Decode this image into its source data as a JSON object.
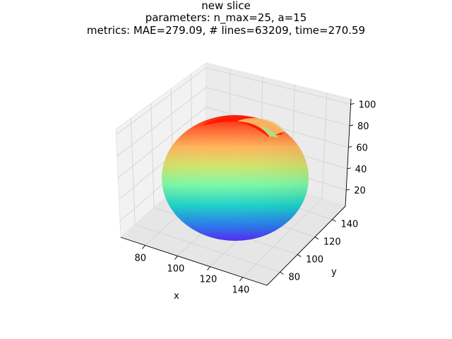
{
  "chart_data": {
    "type": "surface3d",
    "title": "new slice",
    "subtitle_params": "parameters: n_max=25, a=15",
    "subtitle_metrics": "metrics: MAE=279.09, # lines=63209, time=270.59",
    "xlabel": "x",
    "ylabel": "y",
    "zlabel": "",
    "x_ticks": [
      80,
      100,
      120,
      140
    ],
    "y_ticks": [
      80,
      100,
      120,
      140
    ],
    "z_ticks": [
      20,
      40,
      60,
      80,
      100
    ],
    "xlim": [
      65,
      155
    ],
    "ylim": [
      65,
      155
    ],
    "zlim": [
      5,
      105
    ],
    "colormap": "rainbow (blue bottom to red top)",
    "grid": true,
    "surface": {
      "shape": "sphere-like body with concave opening at top",
      "center": [
        110,
        110,
        47
      ],
      "radius_xy": 36,
      "z_range": [
        8,
        92
      ]
    }
  }
}
